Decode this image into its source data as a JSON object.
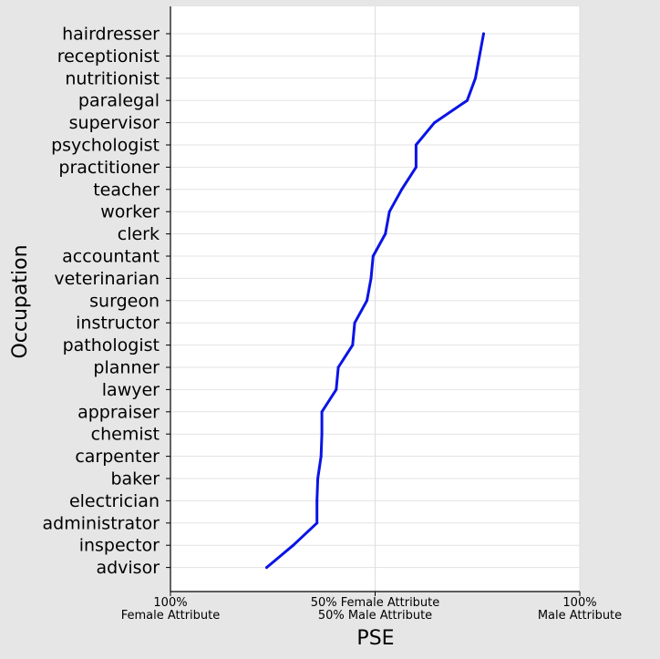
{
  "chart_data": {
    "type": "line",
    "xlabel": "PSE",
    "ylabel": "Occupation",
    "xlim": [
      0,
      100
    ],
    "x_ticks": [
      {
        "value": 0,
        "line1": "100%",
        "line2": "Female Attribute"
      },
      {
        "value": 50,
        "line1": "50% Female Attribute",
        "line2": "50% Male Attribute"
      },
      {
        "value": 100,
        "line1": "100%",
        "line2": "Male Attribute"
      }
    ],
    "grid": "on",
    "colors": {
      "line": "#0a14e6",
      "plot_bg": "#ffffff",
      "figure_bg": "#e6e6e6"
    },
    "series": [
      {
        "categories": [
          "hairdresser",
          "receptionist",
          "nutritionist",
          "paralegal",
          "supervisor",
          "psychologist",
          "practitioner",
          "teacher",
          "worker",
          "clerk",
          "accountant",
          "veterinarian",
          "surgeon",
          "instructor",
          "pathologist",
          "planner",
          "lawyer",
          "appraiser",
          "chemist",
          "carpenter",
          "baker",
          "electrician",
          "administrator",
          "inspector",
          "advisor"
        ],
        "values": [
          76.5,
          75.5,
          74.5,
          72.5,
          64.5,
          60,
          60,
          56.5,
          53.5,
          52.5,
          49.5,
          49,
          48,
          45,
          44.5,
          41,
          40.5,
          37,
          37,
          36.8,
          36,
          35.8,
          35.8,
          30,
          23.5
        ]
      }
    ]
  }
}
